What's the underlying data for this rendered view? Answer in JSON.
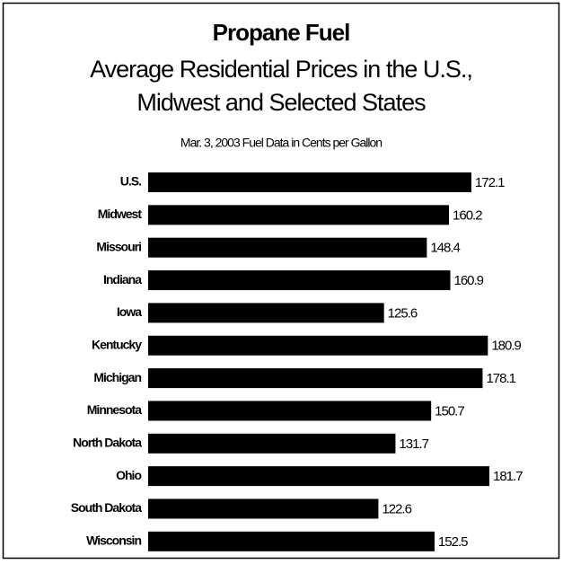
{
  "chart_data": {
    "type": "bar",
    "orientation": "horizontal",
    "title": "Propane Fuel",
    "subtitle": [
      "Average Residential Prices in the U.S.,",
      "Midwest and Selected States"
    ],
    "note": "Mar. 3, 2003 Fuel Data in Cents per Gallon",
    "categories": [
      "U.S.",
      "Midwest",
      "Missouri",
      "Indiana",
      "Iowa",
      "Kentucky",
      "Michigan",
      "Minnesota",
      "North Dakota",
      "Ohio",
      "South Dakota",
      "Wisconsin"
    ],
    "values": [
      172.1,
      160.2,
      148.4,
      160.9,
      125.6,
      180.9,
      178.1,
      150.7,
      131.7,
      181.7,
      122.6,
      152.5
    ],
    "color": "#000000"
  }
}
